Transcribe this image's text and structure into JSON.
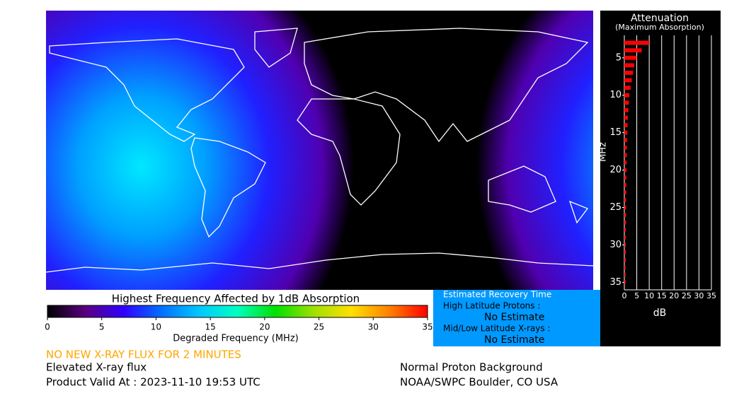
{
  "map": {
    "title": "Highest Frequency Affected by 1dB Absorption",
    "colorbar": {
      "xlabel": "Degraded Frequency (MHz)",
      "xlim": [
        0,
        35
      ],
      "xticks": [
        0,
        5,
        10,
        15,
        20,
        25,
        30,
        35
      ],
      "colors": [
        "#000000",
        "#5a0080",
        "#3000ff",
        "#0070ff",
        "#00c8ff",
        "#00ffc0",
        "#00e000",
        "#a0e000",
        "#ffe000",
        "#ff8000",
        "#ff0000"
      ]
    }
  },
  "attenuation": {
    "type": "bar",
    "title": "Attenuation",
    "subtitle": "(Maximum Absorption)",
    "ylabel": "MHz",
    "xlabel": "dB",
    "color": "#ff0000",
    "xlim": [
      0,
      35
    ],
    "xticks": [
      0,
      5,
      10,
      15,
      20,
      25,
      30,
      35
    ],
    "ylim": [
      2,
      36
    ],
    "yticks": [
      5,
      10,
      15,
      20,
      25,
      30,
      35
    ],
    "frequencies": [
      3,
      4,
      5,
      6,
      7,
      8,
      9,
      10,
      11,
      12,
      13,
      14,
      15,
      16,
      17,
      18,
      19,
      20,
      21,
      22,
      23,
      24,
      25,
      26,
      27,
      28,
      29,
      30,
      31,
      32,
      33,
      34,
      35
    ],
    "values": [
      10,
      7,
      5,
      4,
      3.5,
      3,
      2.5,
      2,
      1.8,
      1.6,
      1.4,
      1.3,
      1.2,
      1.1,
      1,
      1,
      0.9,
      0.9,
      0.8,
      0.8,
      0.8,
      0.7,
      0.7,
      0.7,
      0.7,
      0.6,
      0.6,
      0.6,
      0.6,
      0.6,
      0.5,
      0.5,
      0.5
    ]
  },
  "recovery": {
    "title": "Estimated Recovery Time",
    "protons_label": "High Latitude Protons :",
    "protons_value": "No Estimate",
    "xrays_label": "Mid/Low Latitude X-rays :",
    "xrays_value": "No Estimate"
  },
  "status": {
    "alert": "NO NEW X-RAY FLUX FOR 2 MINUTES",
    "xray": "Elevated X-ray flux",
    "valid": "Product Valid At : 2023-11-10 19:53 UTC",
    "proton": "Normal Proton Background",
    "source": "NOAA/SWPC Boulder, CO USA"
  }
}
